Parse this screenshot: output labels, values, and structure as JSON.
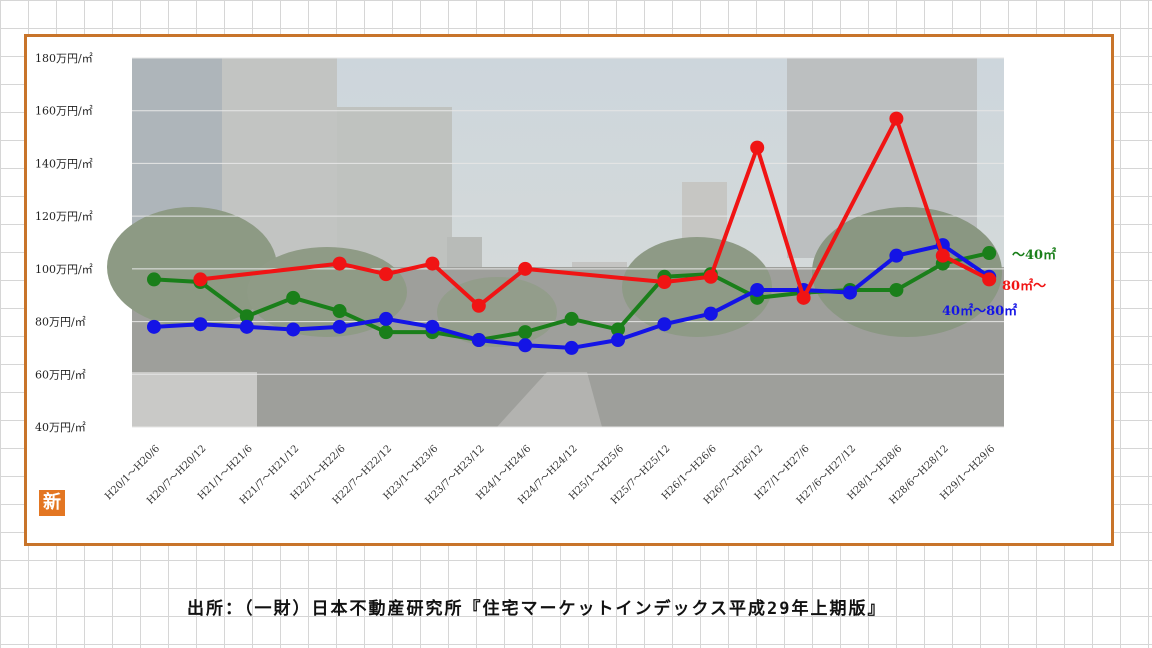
{
  "chart_data": {
    "type": "line",
    "title": "",
    "xlabel": "",
    "ylabel": "",
    "ylim": [
      40,
      180
    ],
    "yticks": [
      "40万円/㎡",
      "60万円/㎡",
      "80万円/㎡",
      "100万円/㎡",
      "120万円/㎡",
      "140万円/㎡",
      "160万円/㎡",
      "180万円/㎡"
    ],
    "ytick_values": [
      40,
      60,
      80,
      100,
      120,
      140,
      160,
      180
    ],
    "categories": [
      "H20/1〜H20/6",
      "H20/7〜H20/12",
      "H21/1〜H21/6",
      "H21/7〜H21/12",
      "H22/1〜H22/6",
      "H22/7〜H22/12",
      "H23/1〜H23/6",
      "H23/7〜H23/12",
      "H24/1〜H24/6",
      "H24/7〜H24/12",
      "H25/1〜H25/6",
      "H25/7〜H25/12",
      "H26/1〜H26/6",
      "H26/7〜H26/12",
      "H27/1〜H27/6",
      "H27/6〜H27/12",
      "H28/1〜H28/6",
      "H28/6〜H28/12",
      "H29/1〜H29/6"
    ],
    "grid": true,
    "background": "photo of city street with buildings and trees (muted)",
    "series": [
      {
        "name": "〜40㎡",
        "color": "#1a7f1a",
        "values": [
          96,
          95,
          82,
          89,
          84,
          76,
          76,
          73,
          76,
          81,
          77,
          97,
          98,
          89,
          91,
          92,
          92,
          102,
          106
        ]
      },
      {
        "name": "40㎡〜80㎡",
        "color": "#1414e6",
        "values": [
          78,
          79,
          78,
          77,
          78,
          81,
          78,
          73,
          71,
          70,
          73,
          79,
          83,
          92,
          92,
          91,
          105,
          109,
          97
        ]
      },
      {
        "name": "80㎡〜",
        "color": "#f01414",
        "values": [
          null,
          96,
          null,
          null,
          102,
          98,
          102,
          86,
          100,
          null,
          null,
          95,
          97,
          146,
          89,
          null,
          157,
          105,
          96
        ]
      }
    ]
  },
  "badge_text": "新",
  "source_note": "出所：（一財）日本不動産研究所『住宅マーケットインデックス平成29年上期版』"
}
